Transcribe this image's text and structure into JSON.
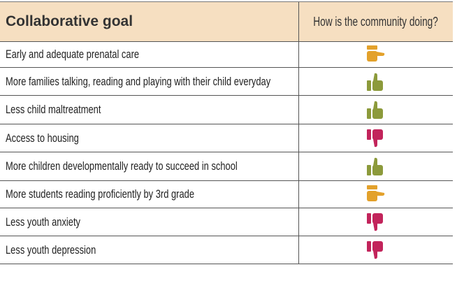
{
  "table": {
    "header": [
      "Collaborative goal",
      "How is the community doing?"
    ],
    "rows": [
      "Early and adequate prenatal care",
      "More families talking, reading and playing with their child everyday",
      "Less child maltreatment",
      "Access to housing",
      "More children developmentally ready to succeed in school",
      "More students reading proficiently by 3rd grade",
      "Less youth anxiety",
      "Less youth depression"
    ]
  }
}
